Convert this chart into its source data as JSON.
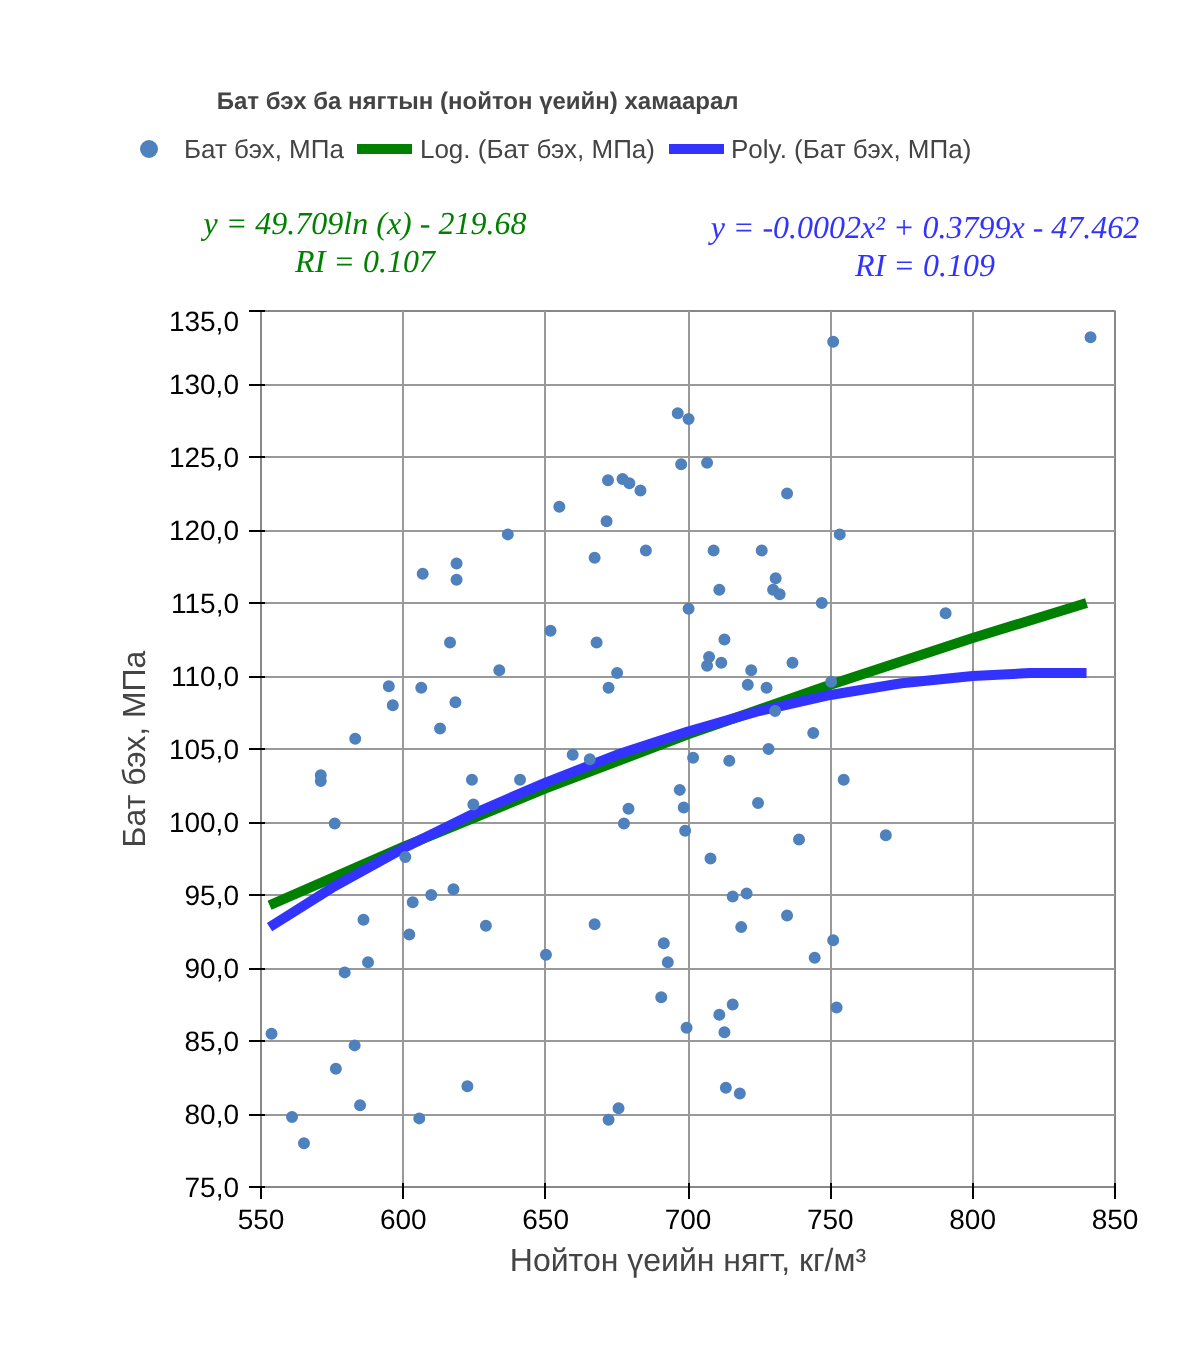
{
  "chart_data": {
    "type": "scatter",
    "title": "Бат бэх  ба нягтын (нойтон үеийн) хамаарал",
    "xlabel": "Нойтон үеийн нягт, кг/м³",
    "ylabel": "Бат бэх, МПа",
    "series": [
      {
        "name": "Бат бэх, МПа",
        "color": "#4f81bd",
        "marker": "circle",
        "x": [
          696.4,
          700.2,
          697.6,
          671.9,
          677.0,
          679.4,
          683.3,
          654.8,
          671.4,
          636.7,
          685.2,
          667.2,
          618.7,
          606.8,
          618.7,
          700.2,
          651.7,
          616.4,
          667.9,
          633.7,
          675.1,
          594.9,
          606.3,
          672.1,
          596.3,
          618.3,
          612.9,
          583.1,
          659.5,
          665.5,
          751.0,
          841.4,
          706.7,
          734.8,
          753.3,
          709.0,
          725.9,
          730.8,
          729.9,
          732.2,
          711.0,
          747.0,
          790.5,
          712.8,
          707.4,
          706.7,
          711.7,
          722.2,
          736.7,
          721.0,
          727.6,
          750.3,
          730.6,
          744.0,
          728.3,
          701.8,
          714.5,
          571.0,
          571.0,
          624.1,
          641.0,
          624.6,
          575.9,
          600.7,
          697.1,
          698.5,
          679.1,
          677.5,
          699.0,
          603.3,
          609.8,
          617.6,
          586.0,
          602.1,
          629.0,
          667.2,
          587.6,
          650.1,
          579.4,
          691.5,
          692.9,
          690.6,
          553.7,
          582.9,
          699.5,
          576.3,
          622.5,
          584.8,
          560.9,
          605.6,
          565.1,
          672.1,
          675.6,
          754.7,
          724.6,
          739.0,
          769.5,
          707.9,
          715.7,
          720.6,
          734.8,
          718.7,
          751.0,
          744.5,
          711.0,
          715.7,
          712.8,
          752.2,
          713.3,
          718.2
        ],
        "values": [
          128.0,
          127.6,
          124.5,
          123.4,
          123.5,
          123.2,
          122.7,
          121.6,
          120.6,
          119.7,
          118.6,
          118.1,
          117.7,
          117.0,
          116.6,
          114.6,
          113.1,
          112.3,
          112.3,
          110.4,
          110.2,
          109.3,
          109.2,
          109.2,
          108.0,
          108.2,
          106.4,
          105.7,
          104.6,
          104.3,
          132.9,
          133.2,
          124.6,
          122.5,
          119.7,
          118.6,
          118.6,
          116.7,
          115.9,
          115.6,
          115.9,
          115.0,
          114.3,
          112.5,
          111.3,
          110.7,
          110.9,
          110.4,
          110.9,
          109.4,
          109.2,
          109.6,
          107.6,
          106.1,
          105.0,
          104.4,
          104.2,
          103.2,
          102.8,
          102.9,
          102.9,
          101.2,
          99.9,
          97.6,
          102.2,
          101.0,
          100.9,
          99.9,
          99.4,
          94.5,
          95.0,
          95.4,
          93.3,
          92.3,
          92.9,
          93.0,
          90.4,
          90.9,
          89.7,
          91.7,
          90.4,
          88.0,
          85.5,
          84.7,
          85.9,
          83.1,
          81.9,
          80.6,
          79.8,
          79.7,
          78.0,
          79.6,
          80.4,
          102.9,
          101.3,
          98.8,
          99.1,
          97.5,
          94.9,
          95.1,
          93.6,
          92.8,
          91.9,
          90.7,
          86.8,
          87.5,
          85.6,
          87.3,
          81.8,
          81.4
        ]
      },
      {
        "name": "Log. (Бат бэх, МПа)",
        "color": "#008000",
        "type": "line",
        "x": [
          553,
          600,
          650,
          700,
          750,
          800,
          840
        ],
        "values": [
          94.3,
          98.3,
          102.3,
          106.0,
          109.4,
          112.6,
          115.0
        ]
      },
      {
        "name": "Poly. (Бат бэх, МПа)",
        "color": "#3333ff",
        "type": "line",
        "x": [
          553,
          575,
          600,
          625,
          650,
          675,
          700,
          725,
          750,
          775,
          800,
          820,
          840
        ],
        "values": [
          92.8,
          95.5,
          98.2,
          100.6,
          102.7,
          104.6,
          106.2,
          107.6,
          108.7,
          109.5,
          110.0,
          110.2,
          110.2
        ]
      }
    ],
    "annotations": [
      "y = 49.709ln (x) - 219.68",
      "RI = 0.107",
      "y = -0.0002x² + 0.3799x - 47.462",
      "RI = 0.109"
    ],
    "xlim": [
      550,
      850
    ],
    "xticks": [
      550,
      600,
      650,
      700,
      750,
      800,
      850
    ],
    "ylim": [
      75,
      135
    ],
    "yticks": [
      {
        "value": 75,
        "label": "75,0"
      },
      {
        "value": 80,
        "label": "80,0"
      },
      {
        "value": 85,
        "label": "85,0"
      },
      {
        "value": 90,
        "label": "90,0"
      },
      {
        "value": 95,
        "label": "95,0"
      },
      {
        "value": 100,
        "label": "100,0"
      },
      {
        "value": 105,
        "label": "105,0"
      },
      {
        "value": 110,
        "label": "110,0"
      },
      {
        "value": 115,
        "label": "115,0"
      },
      {
        "value": 120,
        "label": "120,0"
      },
      {
        "value": 125,
        "label": "125,0"
      },
      {
        "value": 130,
        "label": "130,0"
      },
      {
        "value": 135,
        "label": "135,0"
      }
    ],
    "grid": true,
    "legend": "top"
  }
}
